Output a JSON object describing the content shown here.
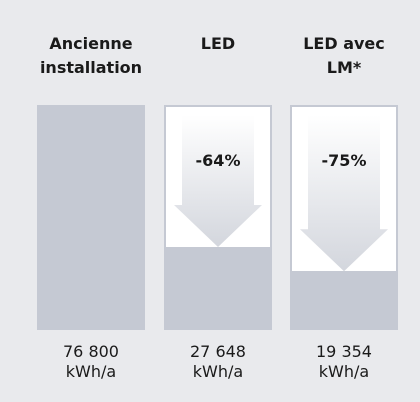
{
  "chart_data": {
    "type": "bar",
    "categories": [
      "Ancienne installation",
      "LED",
      "LED avec LM*"
    ],
    "values": [
      76800,
      27648,
      19354
    ],
    "value_labels": [
      "76 800",
      "27 648",
      "19 354"
    ],
    "unit": "kWh/a",
    "annotations": [
      "-64%",
      "-75%"
    ],
    "color": "#c5c9d3"
  }
}
